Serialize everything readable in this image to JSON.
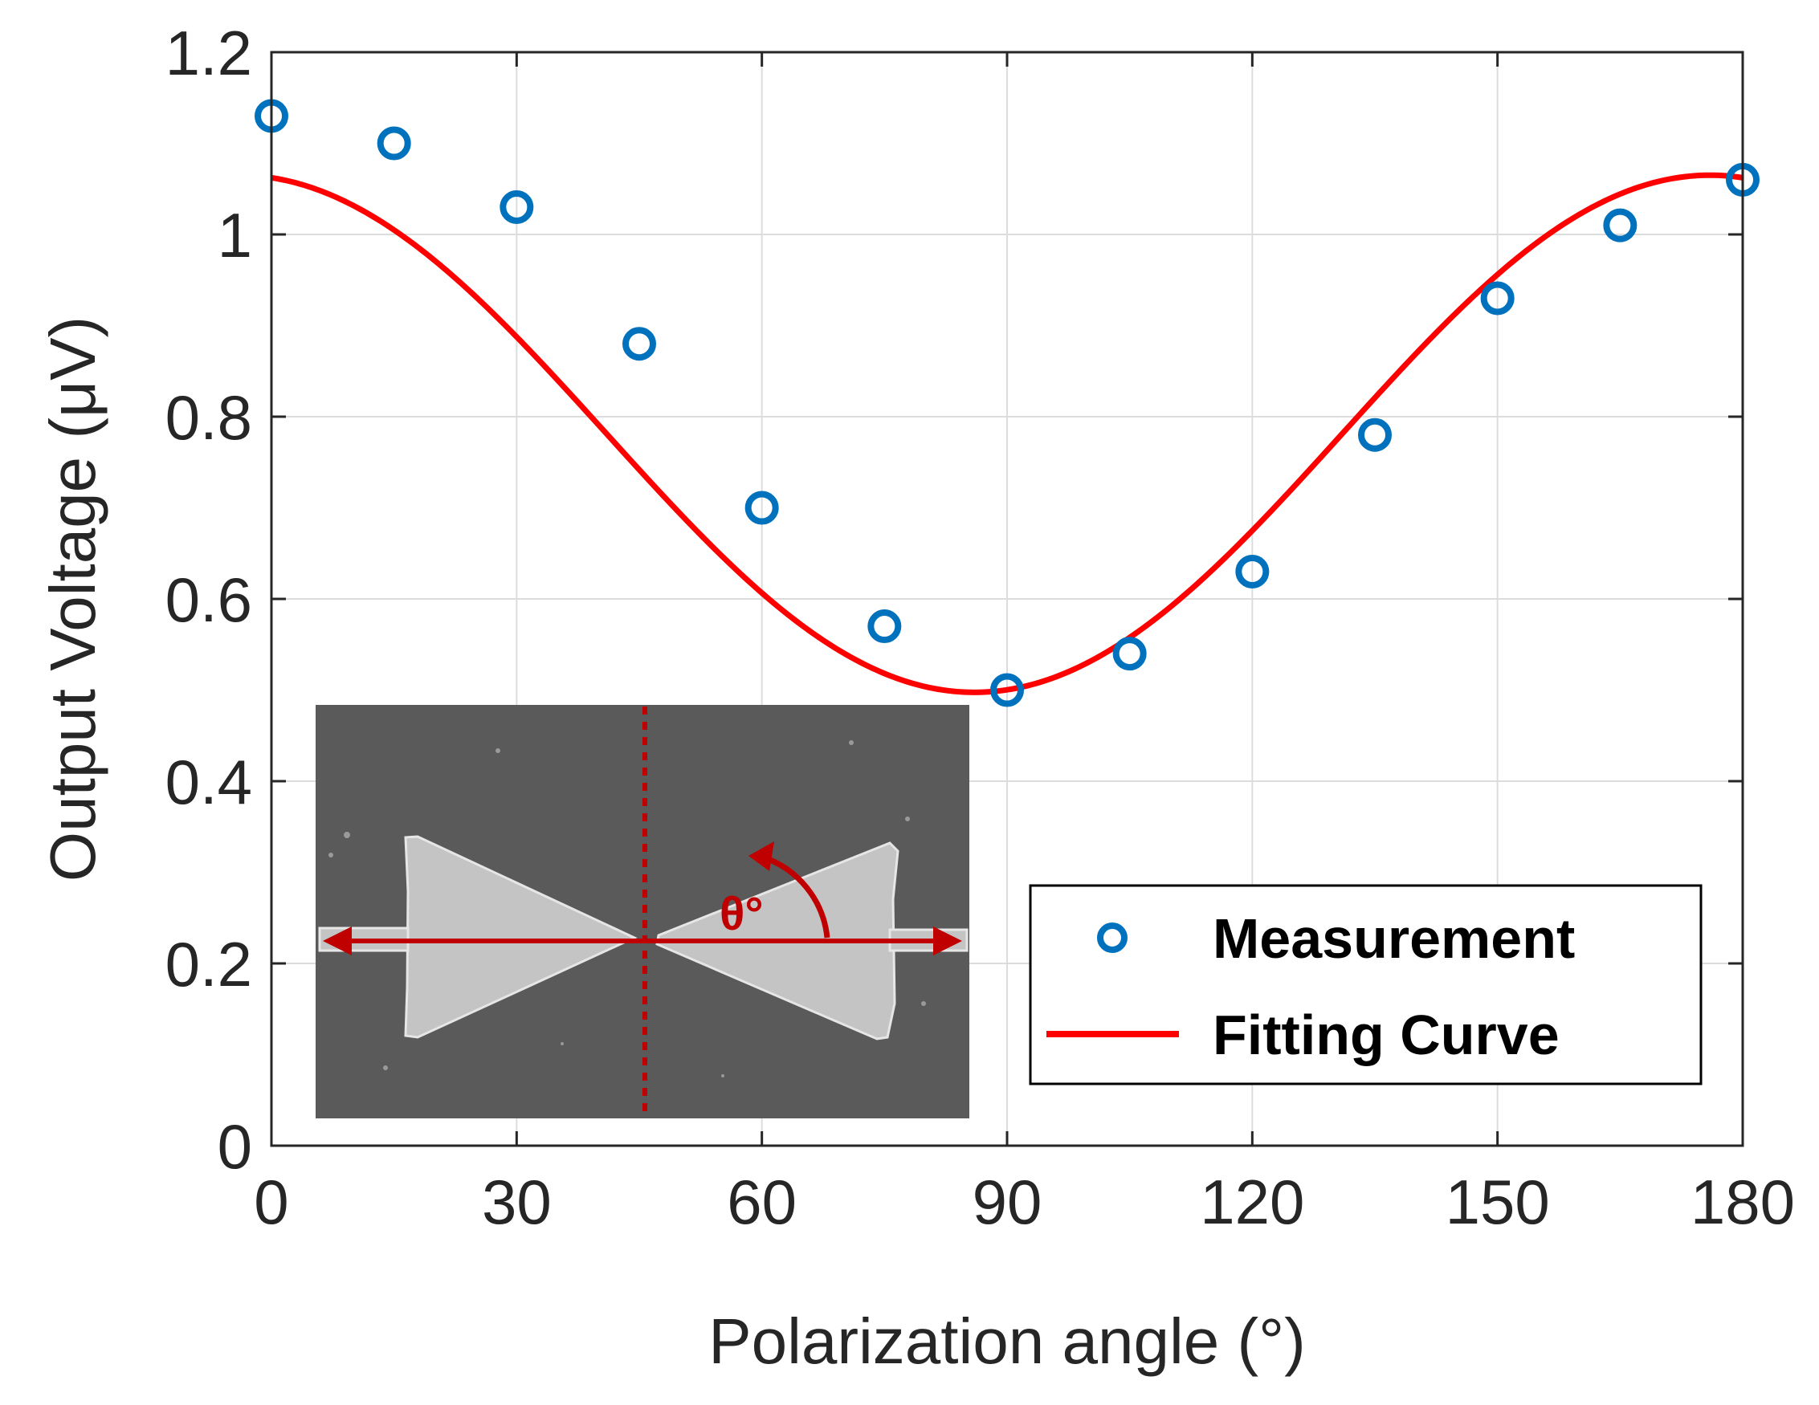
{
  "colors": {
    "measurement": "#0072BD",
    "fit": "#FF0000",
    "arrow": "#C00000",
    "grid": "#DCDCDC",
    "axis": "#262626",
    "sem_bg": "#5a5a5a",
    "sem_device": "#c4c4c4"
  },
  "chart_data": {
    "type": "scatter",
    "xlabel": "Polarization angle (°)",
    "ylabel": "Output Voltage (μV)",
    "xlim": [
      0,
      180
    ],
    "ylim": [
      0,
      1.2
    ],
    "xticks": [
      0,
      30,
      60,
      90,
      120,
      150,
      180
    ],
    "xtick_labels": [
      "0",
      "30",
      "60",
      "90",
      "120",
      "150",
      "180"
    ],
    "yticks": [
      0,
      0.2,
      0.4,
      0.6,
      0.8,
      1.0,
      1.2
    ],
    "ytick_labels": [
      "0",
      "0.2",
      "0.4",
      "0.6",
      "0.8",
      "1",
      "1.2"
    ],
    "grid": true,
    "legend_position": "bottom-right",
    "series": [
      {
        "name": "Measurement",
        "kind": "marker",
        "marker": "circle",
        "x": [
          0,
          15,
          30,
          45,
          60,
          75,
          90,
          105,
          120,
          135,
          150,
          165,
          180
        ],
        "y": [
          1.13,
          1.1,
          1.03,
          0.88,
          0.7,
          0.57,
          0.5,
          0.54,
          0.63,
          0.78,
          0.93,
          1.01,
          1.06
        ]
      },
      {
        "name": "Fitting Curve",
        "kind": "line",
        "model": "y = offset + amplitude * cos^2((x - phase) * pi/180)",
        "params": {
          "offset": 0.4975,
          "amplitude": 0.5675,
          "phase": 176
        }
      }
    ],
    "inset": {
      "description": "SEM image of bow-tie antenna",
      "angle_label": "θ°"
    }
  }
}
